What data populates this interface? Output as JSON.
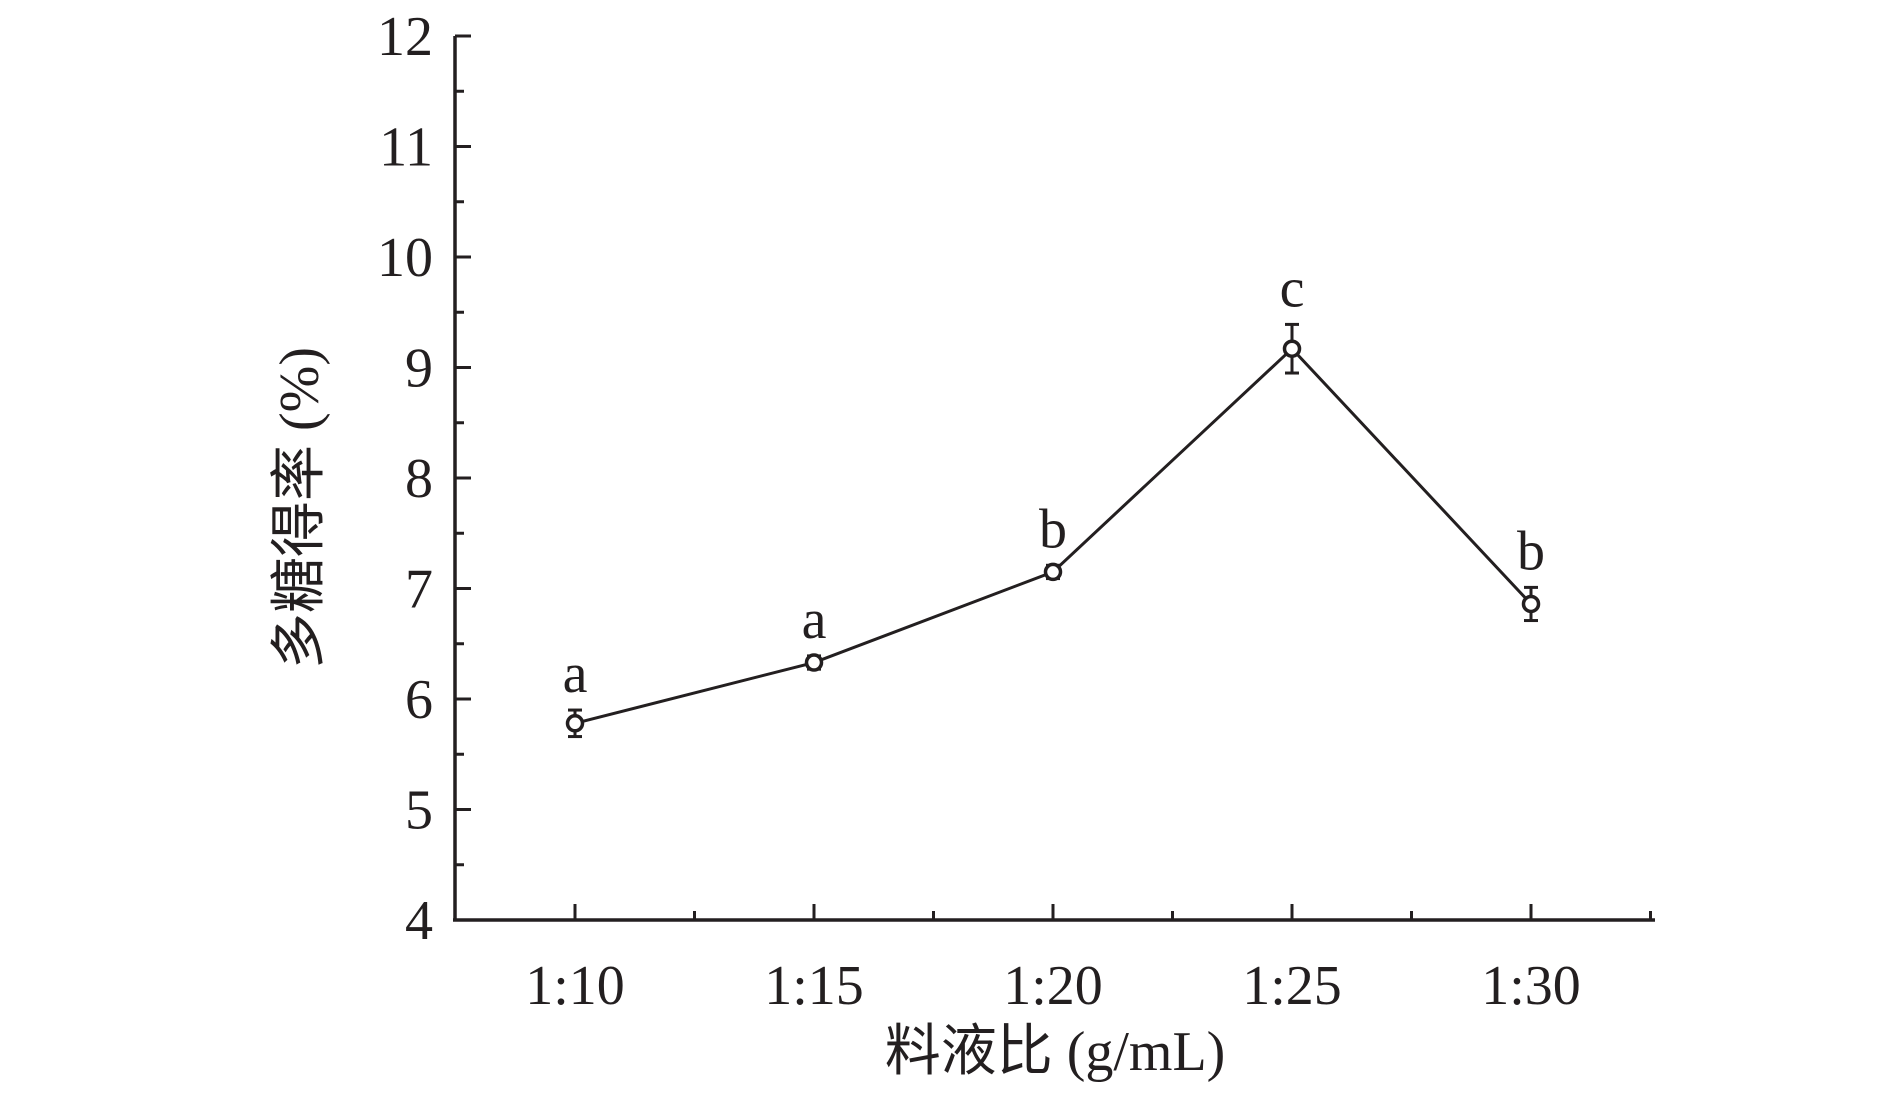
{
  "chart_data": {
    "type": "line",
    "title": "",
    "xlabel": "料液比 (g/mL)",
    "ylabel": "多糖得率 (%)",
    "categories": [
      "1:10",
      "1:15",
      "1:20",
      "1:25",
      "1:30"
    ],
    "series": [
      {
        "values": [
          5.78,
          6.33,
          7.15,
          9.17,
          6.86
        ],
        "errors": [
          0.12,
          0.06,
          0.06,
          0.22,
          0.15
        ],
        "significance": [
          "a",
          "a",
          "b",
          "c",
          "b"
        ]
      }
    ],
    "ylim": [
      4,
      12
    ],
    "yticks": [
      4,
      5,
      6,
      7,
      8,
      9,
      10,
      11,
      12
    ],
    "grid": false,
    "legend": "none",
    "colors": {
      "axis": "#231f20",
      "line": "#231f20",
      "marker_fill": "#ffffff"
    }
  }
}
